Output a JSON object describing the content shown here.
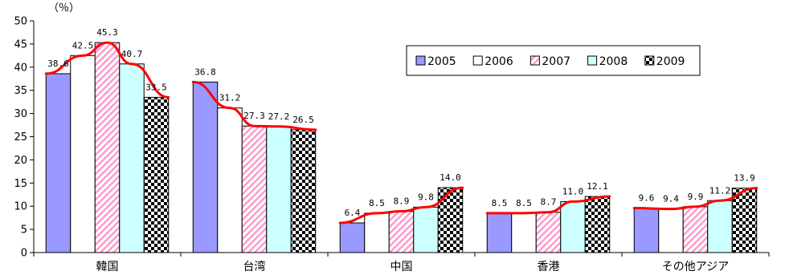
{
  "chart_data": {
    "type": "bar",
    "y_unit": "（％）",
    "ylim": [
      0,
      50
    ],
    "y_ticks": [
      0,
      5,
      10,
      15,
      20,
      25,
      30,
      35,
      40,
      45,
      50
    ],
    "grid": false,
    "legend_position": "top-right",
    "categories": [
      "韓国",
      "台湾",
      "中国",
      "香港",
      "その他アジア"
    ],
    "series": [
      {
        "name": "2005",
        "values": [
          38.6,
          36.8,
          6.4,
          8.5,
          9.6
        ],
        "labels": [
          "38.6",
          "36.8",
          "6.4",
          "8.5",
          "9.6"
        ],
        "color": "#9999ff",
        "pattern": "solid"
      },
      {
        "name": "2006",
        "values": [
          42.5,
          31.2,
          8.5,
          8.5,
          9.4
        ],
        "labels": [
          "42.5",
          "31.2",
          "8.5",
          "8.5",
          "9.4"
        ],
        "color": "#ffffff",
        "pattern": "solid"
      },
      {
        "name": "2007",
        "values": [
          45.3,
          27.3,
          8.9,
          8.7,
          9.9
        ],
        "labels": [
          "45.3",
          "27.3",
          "8.9",
          "8.7",
          "9.9"
        ],
        "color": "#ff99cc",
        "pattern": "diagonal"
      },
      {
        "name": "2008",
        "values": [
          40.7,
          27.2,
          9.8,
          11.0,
          11.2
        ],
        "labels": [
          "40.7",
          "27.2",
          "9.8",
          "11.0",
          "11.2"
        ],
        "color": "#ccffff",
        "pattern": "solid"
      },
      {
        "name": "2009",
        "values": [
          33.5,
          26.5,
          14.0,
          12.1,
          13.9
        ],
        "labels": [
          "33.5",
          "26.5",
          "14.0",
          "12.1",
          "13.9"
        ],
        "color": "#000000",
        "pattern": "checker"
      }
    ],
    "trend_line_color": "#ff0000"
  }
}
